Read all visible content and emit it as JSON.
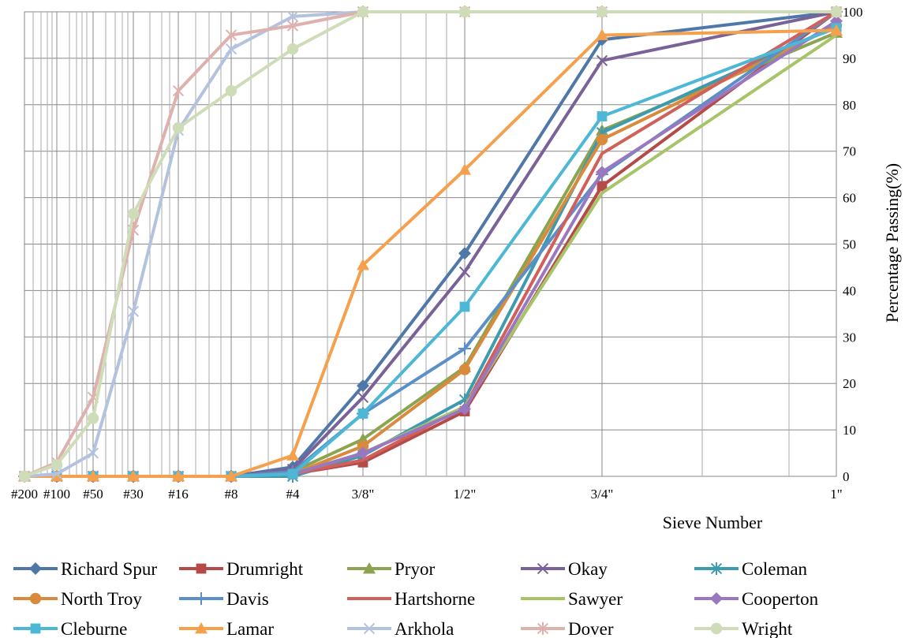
{
  "chart_data": {
    "type": "line",
    "xlabel": "Sieve Number",
    "ylabel": "Percentage Passing(%)",
    "categories": [
      "#200",
      "#100",
      "#50",
      "#30",
      "#16",
      "#8",
      "#4",
      "3/8\"",
      "1/2\"",
      "3/4\"",
      "1\""
    ],
    "ylim": [
      0,
      100
    ],
    "yticks": [
      "0",
      "10",
      "20",
      "30",
      "40",
      "50",
      "60",
      "70",
      "80",
      "90",
      "100"
    ],
    "y_axis_side": "right",
    "grid": true,
    "legend_position": "bottom",
    "series": [
      {
        "name": "Richard Spur",
        "color": "#4F78A8",
        "marker": "diamond",
        "values": [
          0,
          0,
          0,
          0,
          0,
          0,
          2,
          19.5,
          48,
          94,
          100
        ]
      },
      {
        "name": "Drumright",
        "color": "#B54B48",
        "marker": "square",
        "values": [
          0,
          0,
          0,
          0,
          0,
          0,
          0.5,
          3,
          14,
          62.5,
          100
        ]
      },
      {
        "name": "Pryor",
        "color": "#8CA34F",
        "marker": "triangle",
        "values": [
          0,
          0,
          0,
          0,
          0,
          0,
          1,
          8,
          23.5,
          74.5,
          95.5
        ]
      },
      {
        "name": "Okay",
        "color": "#7A6298",
        "marker": "x",
        "values": [
          0,
          0,
          0,
          0,
          0,
          0,
          1.5,
          17,
          44,
          89.5,
          100
        ]
      },
      {
        "name": "Coleman",
        "color": "#3E9AAE",
        "marker": "asterisk",
        "values": [
          0,
          0,
          0,
          0,
          0,
          0,
          0,
          4.5,
          16.5,
          74,
          97
        ]
      },
      {
        "name": "North Troy",
        "color": "#D98A3D",
        "marker": "circle",
        "values": [
          0,
          0,
          0,
          0,
          0,
          0,
          0.5,
          6.5,
          23,
          72.5,
          97
        ]
      },
      {
        "name": "Davis",
        "color": "#5B8FC8",
        "marker": "plus",
        "values": [
          0,
          0,
          0,
          0,
          0,
          0,
          1,
          13.5,
          27.5,
          65,
          100
        ]
      },
      {
        "name": "Hartshorne",
        "color": "#D1605A",
        "marker": "none",
        "values": [
          0,
          0,
          0,
          0,
          0,
          0,
          0.5,
          3.5,
          15,
          69.5,
          100
        ]
      },
      {
        "name": "Sawyer",
        "color": "#A7C468",
        "marker": "none",
        "values": [
          0,
          0,
          0,
          0,
          0,
          0,
          0.5,
          5,
          15,
          61,
          95
        ]
      },
      {
        "name": "Cooperton",
        "color": "#9A78C0",
        "marker": "diamond",
        "values": [
          0,
          0,
          0,
          0,
          0,
          0,
          0.5,
          5,
          14.5,
          65.5,
          98
        ]
      },
      {
        "name": "Cleburne",
        "color": "#4CB8D6",
        "marker": "square",
        "values": [
          0,
          0,
          0,
          0,
          0,
          0,
          0.5,
          13.5,
          36.5,
          77.5,
          96.5
        ]
      },
      {
        "name": "Lamar",
        "color": "#F5A04C",
        "marker": "triangle",
        "values": [
          0,
          0,
          0,
          0,
          0,
          0,
          4.5,
          45.5,
          66,
          95,
          96
        ]
      },
      {
        "name": "Arkhola",
        "color": "#B3C2DE",
        "marker": "x",
        "values": [
          0,
          0.5,
          5,
          35.5,
          74.5,
          92,
          99,
          100,
          100,
          100,
          100
        ]
      },
      {
        "name": "Dover",
        "color": "#DEB0AE",
        "marker": "asterisk",
        "values": [
          0,
          3,
          17,
          53,
          83,
          95,
          97,
          100,
          100,
          100,
          100
        ]
      },
      {
        "name": "Wright",
        "color": "#CFDCB8",
        "marker": "circle",
        "values": [
          0,
          2.5,
          12.5,
          56.5,
          75,
          83,
          92,
          100,
          100,
          100,
          100
        ]
      }
    ]
  }
}
